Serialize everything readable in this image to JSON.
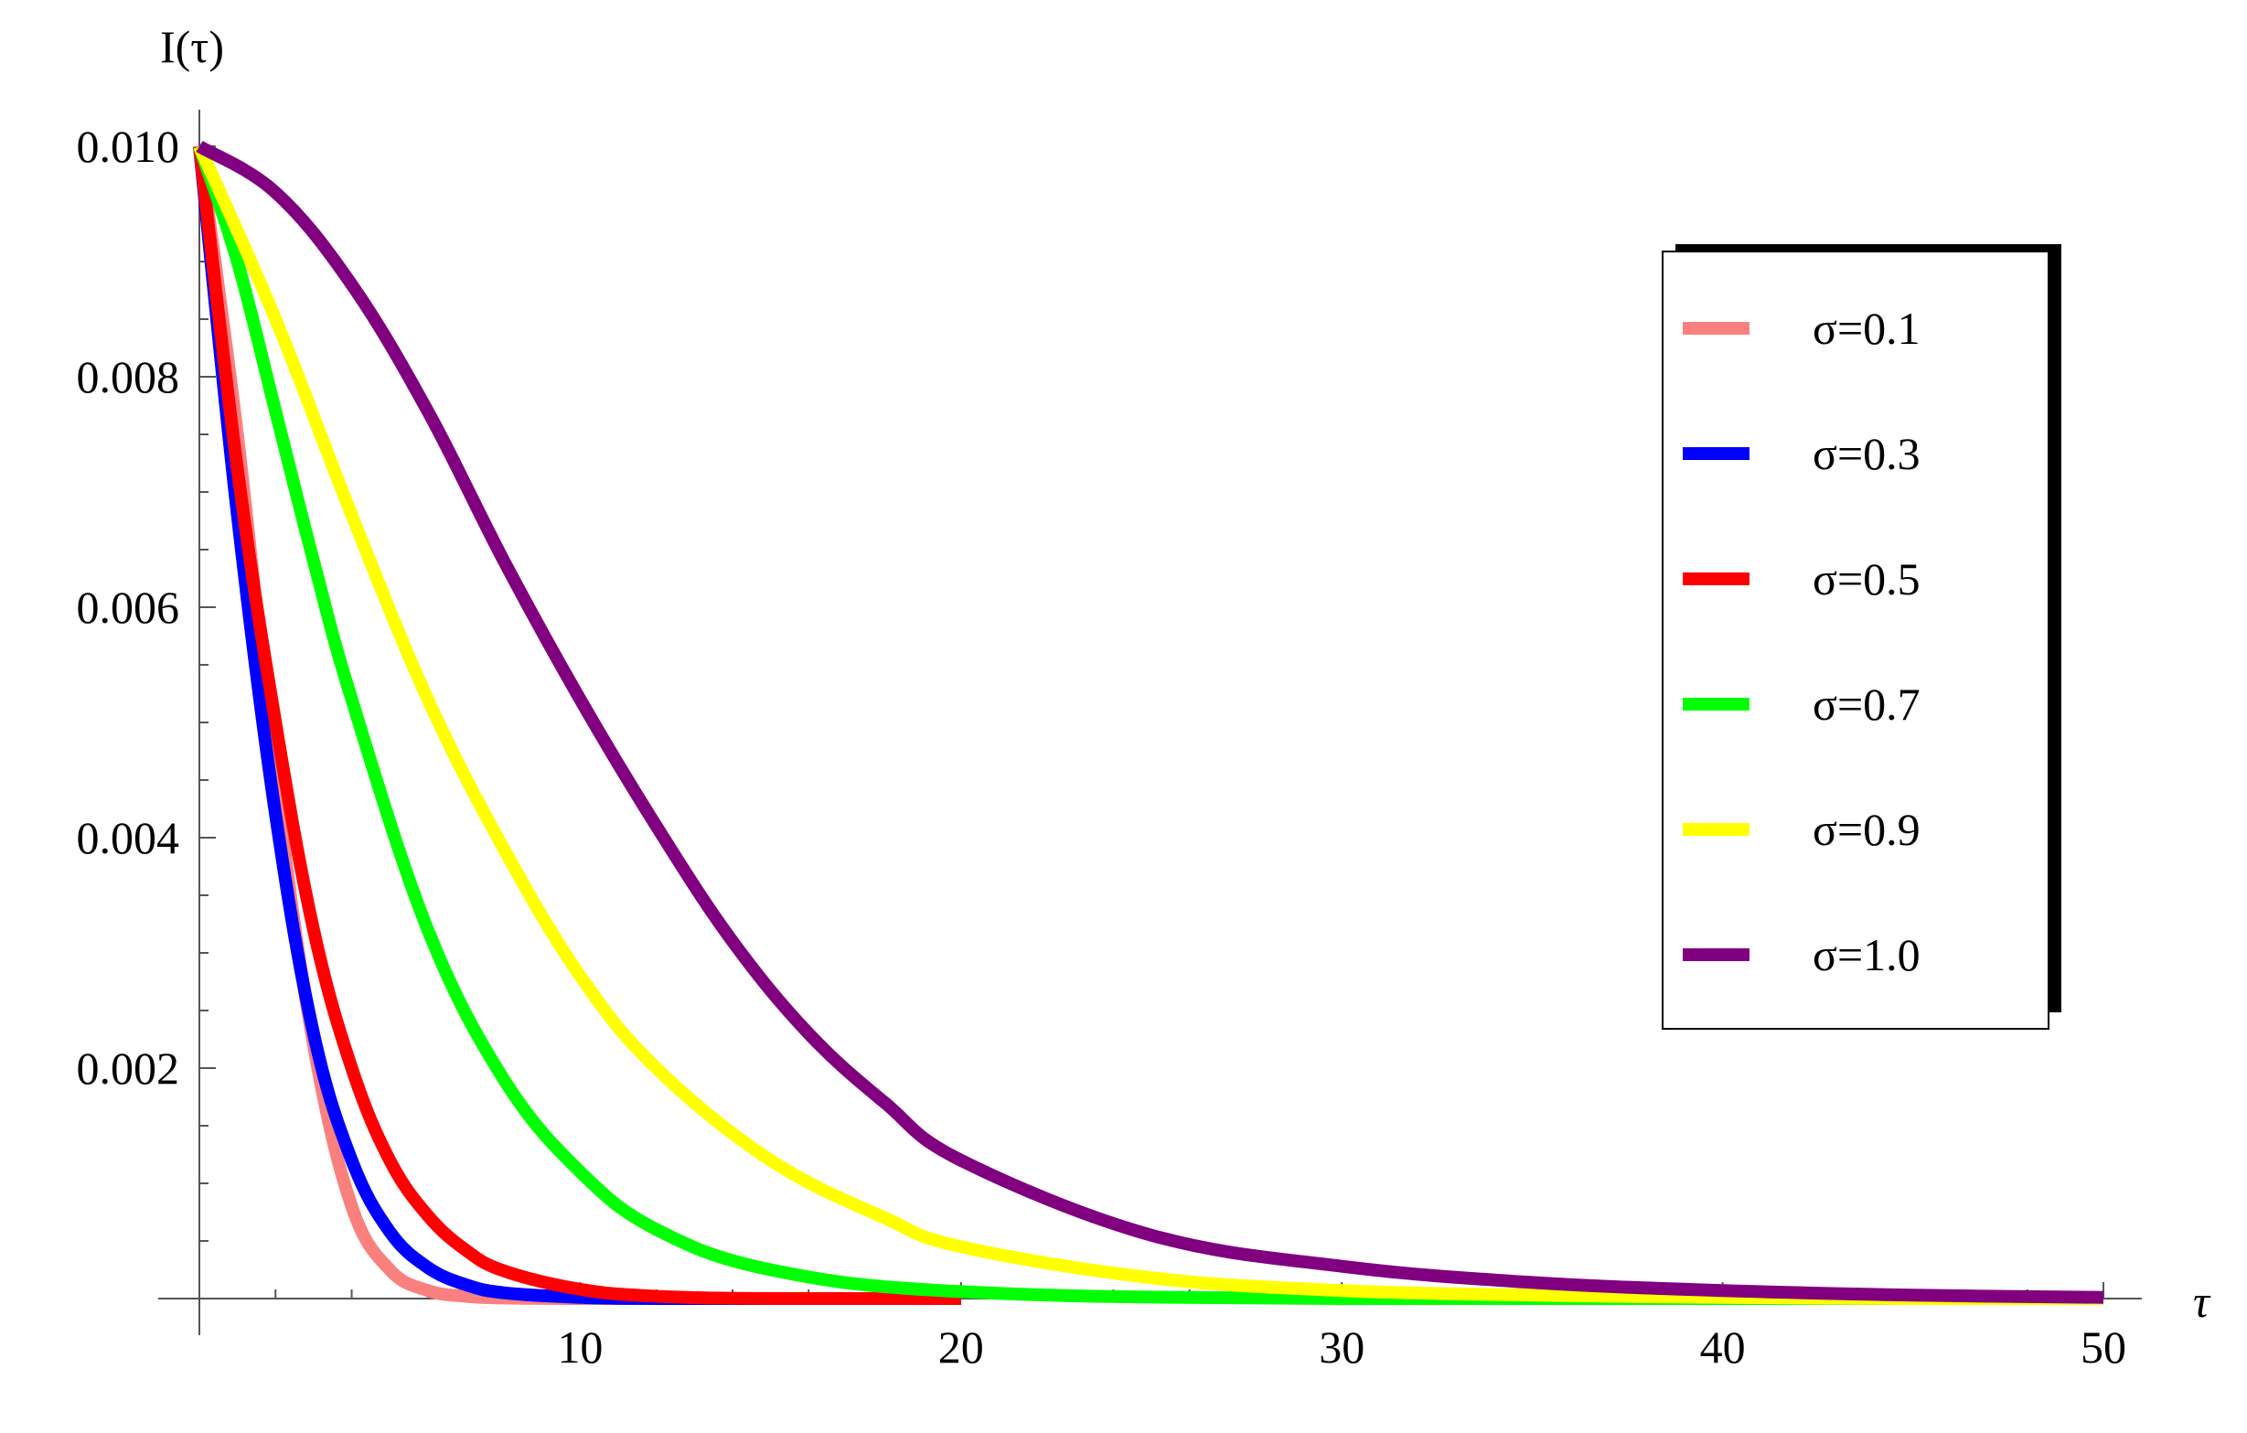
{
  "chart_data": {
    "type": "line",
    "title": "",
    "xlabel": "τ",
    "ylabel": "I(τ)",
    "xlim": [
      0,
      50
    ],
    "ylim": [
      0,
      0.01
    ],
    "x_ticks": [
      10,
      20,
      30,
      40,
      50
    ],
    "x_tick_labels": [
      "10",
      "20",
      "30",
      "40",
      "50"
    ],
    "y_ticks": [
      0.002,
      0.004,
      0.006,
      0.008,
      0.01
    ],
    "y_tick_labels": [
      "0.002",
      "0.004",
      "0.006",
      "0.008",
      "0.010"
    ],
    "grid": false,
    "legend_position": "top-right",
    "series": [
      {
        "name": "σ=0.1",
        "color": "#fa8080",
        "x": [
          0,
          1,
          2,
          3,
          4,
          5,
          6,
          7,
          8,
          10,
          15,
          20
        ],
        "y": [
          0.01,
          0.0075,
          0.0045,
          0.0022,
          0.0008,
          0.00025,
          7e-05,
          2e-05,
          5e-06,
          0,
          0,
          0
        ]
      },
      {
        "name": "σ=0.3",
        "color": "#0000ff",
        "x": [
          0,
          1,
          2,
          3,
          4,
          5,
          6,
          7,
          8,
          10,
          12,
          15,
          20
        ],
        "y": [
          0.01,
          0.0068,
          0.0042,
          0.0023,
          0.0012,
          0.00058,
          0.00027,
          0.00012,
          5e-05,
          1e-05,
          0,
          0,
          0
        ]
      },
      {
        "name": "σ=0.5",
        "color": "#ff0000",
        "x": [
          0,
          1,
          2,
          3,
          4,
          5,
          6,
          7,
          8,
          10,
          12,
          15,
          20
        ],
        "y": [
          0.01,
          0.0072,
          0.005,
          0.0032,
          0.002,
          0.0012,
          0.00072,
          0.00042,
          0.00024,
          8e-05,
          2e-05,
          0,
          0
        ]
      },
      {
        "name": "σ=0.7",
        "color": "#00ff00",
        "x": [
          0,
          1,
          2,
          3,
          4,
          6,
          8,
          10,
          12,
          15,
          20,
          30,
          50
        ],
        "y": [
          0.01,
          0.009,
          0.0077,
          0.0064,
          0.0052,
          0.0032,
          0.0019,
          0.0011,
          0.0006,
          0.00025,
          6e-05,
          0,
          0
        ]
      },
      {
        "name": "σ=0.9",
        "color": "#ffff00",
        "x": [
          0,
          2,
          4,
          6,
          8,
          10,
          12,
          15,
          18,
          20,
          25,
          30,
          35,
          40,
          45,
          50
        ],
        "y": [
          0.01,
          0.0085,
          0.0068,
          0.0052,
          0.0039,
          0.0028,
          0.002,
          0.0012,
          0.0007,
          0.00045,
          0.00018,
          7e-05,
          3e-05,
          1e-05,
          0,
          0
        ]
      },
      {
        "name": "σ=1.0",
        "color": "#800080",
        "x": [
          0,
          2,
          4,
          6,
          8,
          10,
          12,
          14,
          16,
          18,
          20,
          25,
          30,
          35,
          40,
          45,
          50
        ],
        "y": [
          0.01,
          0.0096,
          0.0088,
          0.0077,
          0.0064,
          0.0052,
          0.0041,
          0.0031,
          0.0023,
          0.0017,
          0.0012,
          0.00055,
          0.00028,
          0.00014,
          7e-05,
          3e-05,
          1e-05
        ]
      }
    ]
  }
}
